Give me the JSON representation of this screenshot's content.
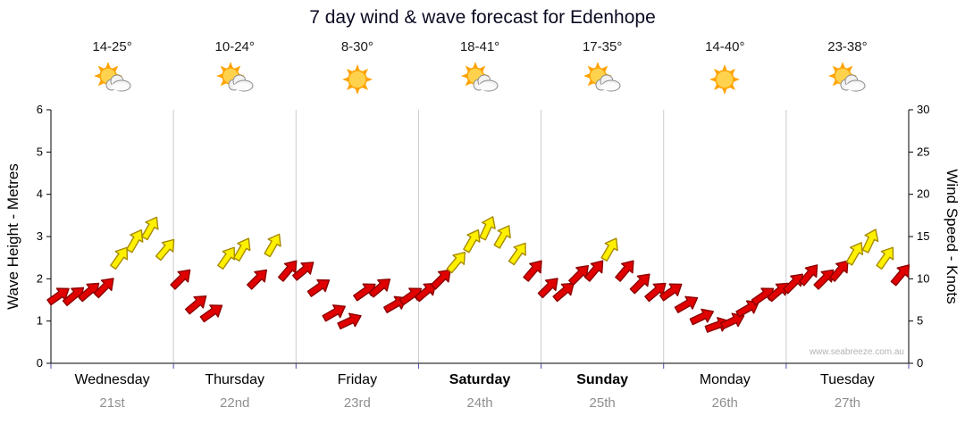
{
  "title": "7 day wind & wave forecast for Edenhope",
  "watermark": "www.seabreeze.com.au",
  "axes": {
    "left_label": "Wave Height - Metres",
    "right_label": "Wind Speed - Knots",
    "left_ticks": [
      0,
      1,
      2,
      3,
      4,
      5,
      6
    ],
    "right_ticks": [
      0,
      5,
      10,
      15,
      20,
      25,
      30
    ]
  },
  "colors": {
    "red_fill": "#e10000",
    "red_outline": "#8b0000",
    "yellow_fill": "#fff000",
    "yellow_outline": "#a68a00",
    "grid": "#cccccc",
    "axis": "#000000",
    "bottom_tick": "#4a4aa8",
    "date_text": "#8f8f8f"
  },
  "days": [
    {
      "name": "Wednesday",
      "date": "21st",
      "temp": "14-25°",
      "icon": "sun-cloud",
      "bold": false
    },
    {
      "name": "Thursday",
      "date": "22nd",
      "temp": "10-24°",
      "icon": "sun-cloud",
      "bold": false
    },
    {
      "name": "Friday",
      "date": "23rd",
      "temp": "8-30°",
      "icon": "sun",
      "bold": false
    },
    {
      "name": "Saturday",
      "date": "24th",
      "temp": "18-41°",
      "icon": "sun-cloud",
      "bold": true
    },
    {
      "name": "Sunday",
      "date": "25th",
      "temp": "17-35°",
      "icon": "sun-cloud",
      "bold": true
    },
    {
      "name": "Monday",
      "date": "26th",
      "temp": "14-40°",
      "icon": "sun",
      "bold": false
    },
    {
      "name": "Tuesday",
      "date": "27th",
      "temp": "23-38°",
      "icon": "sun-cloud",
      "bold": false
    }
  ],
  "chart_data": {
    "type": "wind-arrows",
    "title": "7 day wind & wave forecast for Edenhope",
    "ylabel_left": "Wave Height - Metres",
    "ylabel_right": "Wind Speed - Knots",
    "ylim_metres": [
      0,
      6
    ],
    "ylim_knots": [
      0,
      30
    ],
    "points_per_day": 8,
    "legend": "red arrows = lighter winds, yellow arrows = stronger winds (≥ ~12 knots); arrow angle shows wind direction",
    "series": [
      {
        "day": "Wednesday",
        "speeds_knots": [
          8,
          8,
          8.5,
          9,
          12.5,
          14.5,
          16,
          13.5
        ],
        "directions_deg": [
          35,
          40,
          40,
          45,
          55,
          60,
          60,
          50
        ],
        "colors": [
          "red",
          "red",
          "red",
          "red",
          "yellow",
          "yellow",
          "yellow",
          "yellow"
        ]
      },
      {
        "day": "Thursday",
        "speeds_knots": [
          10,
          7,
          6,
          12.5,
          13.5,
          10,
          14,
          11
        ],
        "directions_deg": [
          45,
          40,
          35,
          55,
          60,
          45,
          60,
          50
        ],
        "colors": [
          "red",
          "red",
          "red",
          "yellow",
          "yellow",
          "red",
          "yellow",
          "red"
        ]
      },
      {
        "day": "Friday",
        "speeds_knots": [
          11,
          9,
          6,
          5,
          8.5,
          9,
          7,
          8
        ],
        "directions_deg": [
          40,
          35,
          30,
          25,
          35,
          40,
          30,
          35
        ],
        "colors": [
          "red",
          "red",
          "red",
          "red",
          "red",
          "red",
          "red",
          "red"
        ]
      },
      {
        "day": "Saturday",
        "speeds_knots": [
          8.5,
          10,
          12,
          14.5,
          16,
          15,
          13,
          11
        ],
        "directions_deg": [
          40,
          45,
          50,
          60,
          65,
          60,
          55,
          50
        ],
        "colors": [
          "red",
          "red",
          "yellow",
          "yellow",
          "yellow",
          "yellow",
          "yellow",
          "red"
        ]
      },
      {
        "day": "Sunday",
        "speeds_knots": [
          9,
          8.5,
          10.5,
          11,
          13.5,
          11,
          9.5,
          8.5
        ],
        "directions_deg": [
          45,
          40,
          45,
          50,
          60,
          50,
          45,
          40
        ],
        "colors": [
          "red",
          "red",
          "red",
          "red",
          "yellow",
          "red",
          "red",
          "red"
        ]
      },
      {
        "day": "Monday",
        "speeds_knots": [
          8.5,
          7,
          5.5,
          4.5,
          5,
          6.5,
          8,
          8.5
        ],
        "directions_deg": [
          35,
          30,
          25,
          20,
          25,
          30,
          35,
          40
        ],
        "colors": [
          "red",
          "red",
          "red",
          "red",
          "red",
          "red",
          "red",
          "red"
        ]
      },
      {
        "day": "Tuesday",
        "speeds_knots": [
          9.5,
          10.5,
          10,
          11,
          13,
          14.5,
          12.5,
          10.5
        ],
        "directions_deg": [
          45,
          50,
          45,
          50,
          60,
          65,
          55,
          50
        ],
        "colors": [
          "red",
          "red",
          "red",
          "red",
          "yellow",
          "yellow",
          "yellow",
          "red"
        ]
      }
    ]
  }
}
